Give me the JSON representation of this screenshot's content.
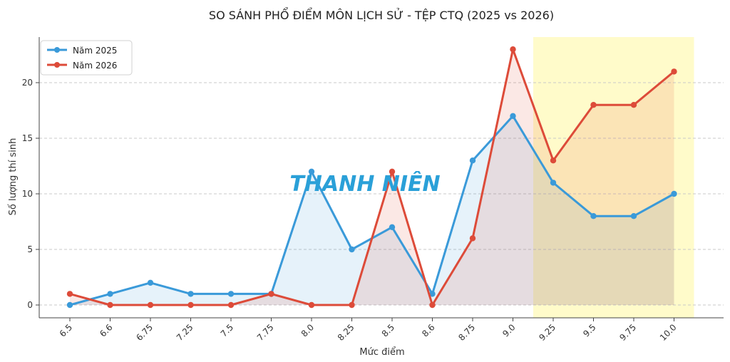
{
  "chart_data": {
    "type": "line",
    "title": "SO SÁNH PHỔ ĐIỂM MÔN LỊCH SỬ - TỆP CTQ (2025 vs 2026)",
    "xlabel": "Mức điểm",
    "ylabel": "Số lượng thí sinh",
    "categories": [
      "6.5",
      "6.6",
      "6.75",
      "7.25",
      "7.5",
      "7.75",
      "8.0",
      "8.25",
      "8.5",
      "8.6",
      "8.75",
      "9.0",
      "9.25",
      "9.5",
      "9.75",
      "10.0"
    ],
    "series": [
      {
        "name": "Năm 2025",
        "color": "#3a9ad9",
        "values": [
          0,
          1,
          2,
          1,
          1,
          1,
          12,
          5,
          7,
          1,
          13,
          17,
          11,
          8,
          8,
          10
        ]
      },
      {
        "name": "Năm 2026",
        "color": "#dd4b39",
        "values": [
          1,
          0,
          0,
          0,
          0,
          1,
          0,
          0,
          12,
          0,
          6,
          23,
          13,
          18,
          18,
          21
        ]
      }
    ],
    "ylim": [
      -1,
      24
    ],
    "yticks": [
      0,
      5,
      10,
      15,
      20
    ],
    "grid": "horizontal dashed",
    "legend": "top-left",
    "highlight_range": [
      "9.25",
      "10.0"
    ],
    "highlight_color": "#fffbc7"
  },
  "watermark": {
    "text": "THANH NIÊN",
    "color": "#2aa0d8"
  }
}
